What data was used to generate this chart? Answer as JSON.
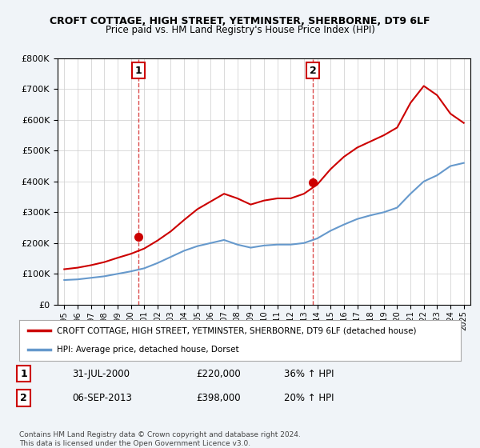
{
  "title": "CROFT COTTAGE, HIGH STREET, YETMINSTER, SHERBORNE, DT9 6LF",
  "subtitle": "Price paid vs. HM Land Registry's House Price Index (HPI)",
  "legend_line1": "CROFT COTTAGE, HIGH STREET, YETMINSTER, SHERBORNE, DT9 6LF (detached house)",
  "legend_line2": "HPI: Average price, detached house, Dorset",
  "footer1": "Contains HM Land Registry data © Crown copyright and database right 2024.",
  "footer2": "This data is licensed under the Open Government Licence v3.0.",
  "sale1_label": "1",
  "sale1_date": "31-JUL-2000",
  "sale1_price": "£220,000",
  "sale1_hpi": "36% ↑ HPI",
  "sale2_label": "2",
  "sale2_date": "06-SEP-2013",
  "sale2_price": "£398,000",
  "sale2_hpi": "20% ↑ HPI",
  "sale1_year": 2000.58,
  "sale1_value": 220000,
  "sale2_year": 2013.68,
  "sale2_value": 398000,
  "red_color": "#cc0000",
  "blue_color": "#6699cc",
  "background_color": "#f0f4f8",
  "plot_bg": "#ffffff",
  "ylim": [
    0,
    800000
  ],
  "xlim_start": 1994.5,
  "xlim_end": 2025.5,
  "hpi_years": [
    1995,
    1996,
    1997,
    1998,
    1999,
    2000,
    2001,
    2002,
    2003,
    2004,
    2005,
    2006,
    2007,
    2008,
    2009,
    2010,
    2011,
    2012,
    2013,
    2014,
    2015,
    2016,
    2017,
    2018,
    2019,
    2020,
    2021,
    2022,
    2023,
    2024,
    2025
  ],
  "hpi_values": [
    80000,
    82000,
    87000,
    92000,
    100000,
    108000,
    118000,
    135000,
    155000,
    175000,
    190000,
    200000,
    210000,
    195000,
    185000,
    192000,
    195000,
    195000,
    200000,
    215000,
    240000,
    260000,
    278000,
    290000,
    300000,
    315000,
    360000,
    400000,
    420000,
    450000,
    460000
  ],
  "prop_years": [
    1995,
    1996,
    1997,
    1998,
    1999,
    2000,
    2001,
    2002,
    2003,
    2004,
    2005,
    2006,
    2007,
    2008,
    2009,
    2010,
    2011,
    2012,
    2013,
    2014,
    2015,
    2016,
    2017,
    2018,
    2019,
    2020,
    2021,
    2022,
    2023,
    2024,
    2025
  ],
  "prop_values": [
    115000,
    120000,
    128000,
    138000,
    152000,
    165000,
    182000,
    208000,
    238000,
    275000,
    310000,
    335000,
    360000,
    345000,
    325000,
    338000,
    345000,
    345000,
    360000,
    390000,
    440000,
    480000,
    510000,
    530000,
    550000,
    575000,
    655000,
    710000,
    680000,
    620000,
    590000
  ]
}
